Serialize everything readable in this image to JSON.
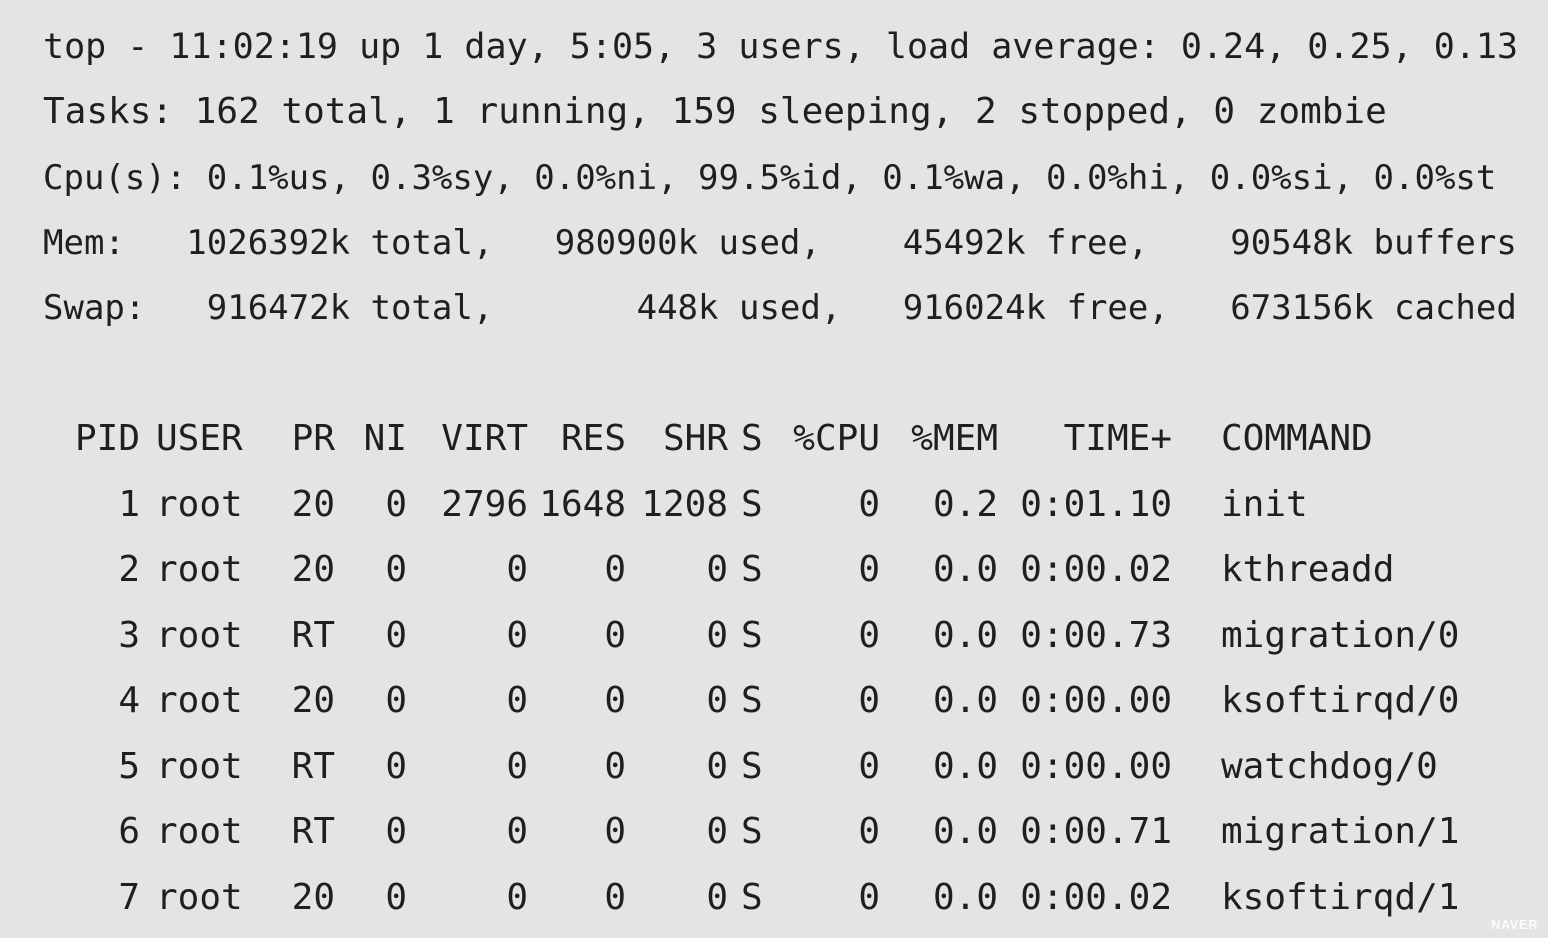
{
  "summary": {
    "lines": [
      "top - 11:02:19 up 1 day, 5:05, 3 users, load average: 0.24, 0.25, 0.13",
      "Tasks: 162 total, 1 running, 159 sleeping, 2 stopped, 0 zombie",
      "Cpu(s): 0.1%us, 0.3%sy, 0.0%ni, 99.5%id, 0.1%wa, 0.0%hi, 0.0%si, 0.0%st",
      "Mem:   1026392k total,   980900k used,    45492k free,    90548k buffers",
      "Swap:   916472k total,       448k used,   916024k free,   673156k cached"
    ]
  },
  "table": {
    "headers": {
      "pid": "PID",
      "user": "USER",
      "pr": "PR",
      "ni": "NI",
      "virt": "VIRT",
      "res": "RES",
      "shr": "SHR",
      "s": "S",
      "cpu": "%CPU",
      "mem": "%MEM",
      "time": "TIME+",
      "command": "COMMAND"
    },
    "rows": [
      {
        "pid": "1",
        "user": "root",
        "pr": "20",
        "ni": "0",
        "virt": "2796",
        "res": "1648",
        "shr": "1208",
        "s": "S",
        "cpu": "0",
        "mem": "0.2",
        "time": "0:01.10",
        "command": "init"
      },
      {
        "pid": "2",
        "user": "root",
        "pr": "20",
        "ni": "0",
        "virt": "0",
        "res": "0",
        "shr": "0",
        "s": "S",
        "cpu": "0",
        "mem": "0.0",
        "time": "0:00.02",
        "command": "kthreadd"
      },
      {
        "pid": "3",
        "user": "root",
        "pr": "RT",
        "ni": "0",
        "virt": "0",
        "res": "0",
        "shr": "0",
        "s": "S",
        "cpu": "0",
        "mem": "0.0",
        "time": "0:00.73",
        "command": "migration/0"
      },
      {
        "pid": "4",
        "user": "root",
        "pr": "20",
        "ni": "0",
        "virt": "0",
        "res": "0",
        "shr": "0",
        "s": "S",
        "cpu": "0",
        "mem": "0.0",
        "time": "0:00.00",
        "command": "ksoftirqd/0"
      },
      {
        "pid": "5",
        "user": "root",
        "pr": "RT",
        "ni": "0",
        "virt": "0",
        "res": "0",
        "shr": "0",
        "s": "S",
        "cpu": "0",
        "mem": "0.0",
        "time": "0:00.00",
        "command": "watchdog/0"
      },
      {
        "pid": "6",
        "user": "root",
        "pr": "RT",
        "ni": "0",
        "virt": "0",
        "res": "0",
        "shr": "0",
        "s": "S",
        "cpu": "0",
        "mem": "0.0",
        "time": "0:00.71",
        "command": "migration/1"
      },
      {
        "pid": "7",
        "user": "root",
        "pr": "20",
        "ni": "0",
        "virt": "0",
        "res": "0",
        "shr": "0",
        "s": "S",
        "cpu": "0",
        "mem": "0.0",
        "time": "0:00.02",
        "command": "ksoftirqd/1"
      }
    ]
  },
  "watermark": "NAVER",
  "colors": {
    "background": "#e4e4e4",
    "text": "#1f1f1f"
  }
}
